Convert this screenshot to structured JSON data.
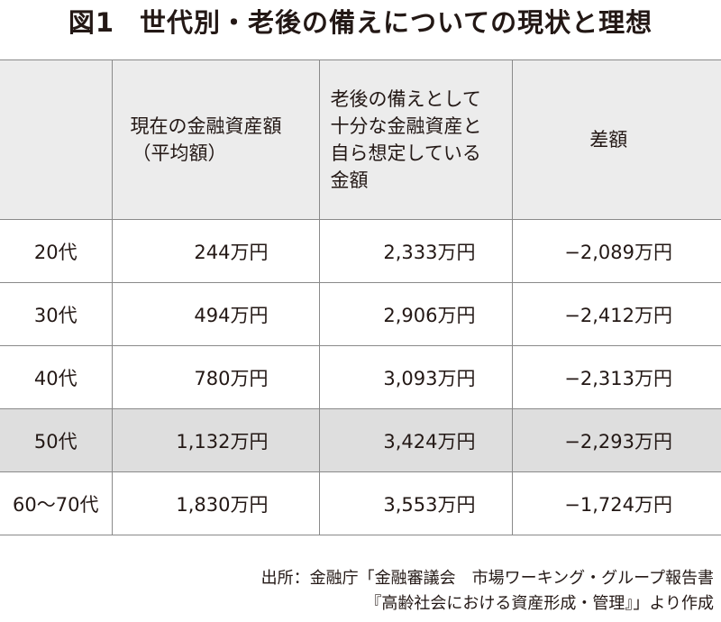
{
  "title": {
    "figure_no": "図1",
    "text": "世代別・老後の備えについての現状と理想"
  },
  "table": {
    "headers": {
      "generation": "",
      "current_line1": "現在の金融資産額",
      "current_line2": "（平均額）",
      "needed_line1": "老後の備えとして",
      "needed_line2": "十分な金融資産と",
      "needed_line3": "自ら想定している",
      "needed_line4": "金額",
      "difference": "差額"
    },
    "rows": [
      {
        "generation": "20代",
        "current": "244万円",
        "needed": "2,333万円",
        "difference": "−2,089万円",
        "highlighted": false
      },
      {
        "generation": "30代",
        "current": "494万円",
        "needed": "2,906万円",
        "difference": "−2,412万円",
        "highlighted": false
      },
      {
        "generation": "40代",
        "current": "780万円",
        "needed": "3,093万円",
        "difference": "−2,313万円",
        "highlighted": false
      },
      {
        "generation": "50代",
        "current": "1,132万円",
        "needed": "3,424万円",
        "difference": "−2,293万円",
        "highlighted": true
      },
      {
        "generation": "60〜70代",
        "current": "1,830万円",
        "needed": "3,553万円",
        "difference": "−1,724万円",
        "highlighted": false
      }
    ]
  },
  "source": {
    "line1": "出所：金融庁「金融審議会　市場ワーキング・グループ報告書",
    "line2": "『高齢社会における資産形成・管理』」より作成"
  }
}
